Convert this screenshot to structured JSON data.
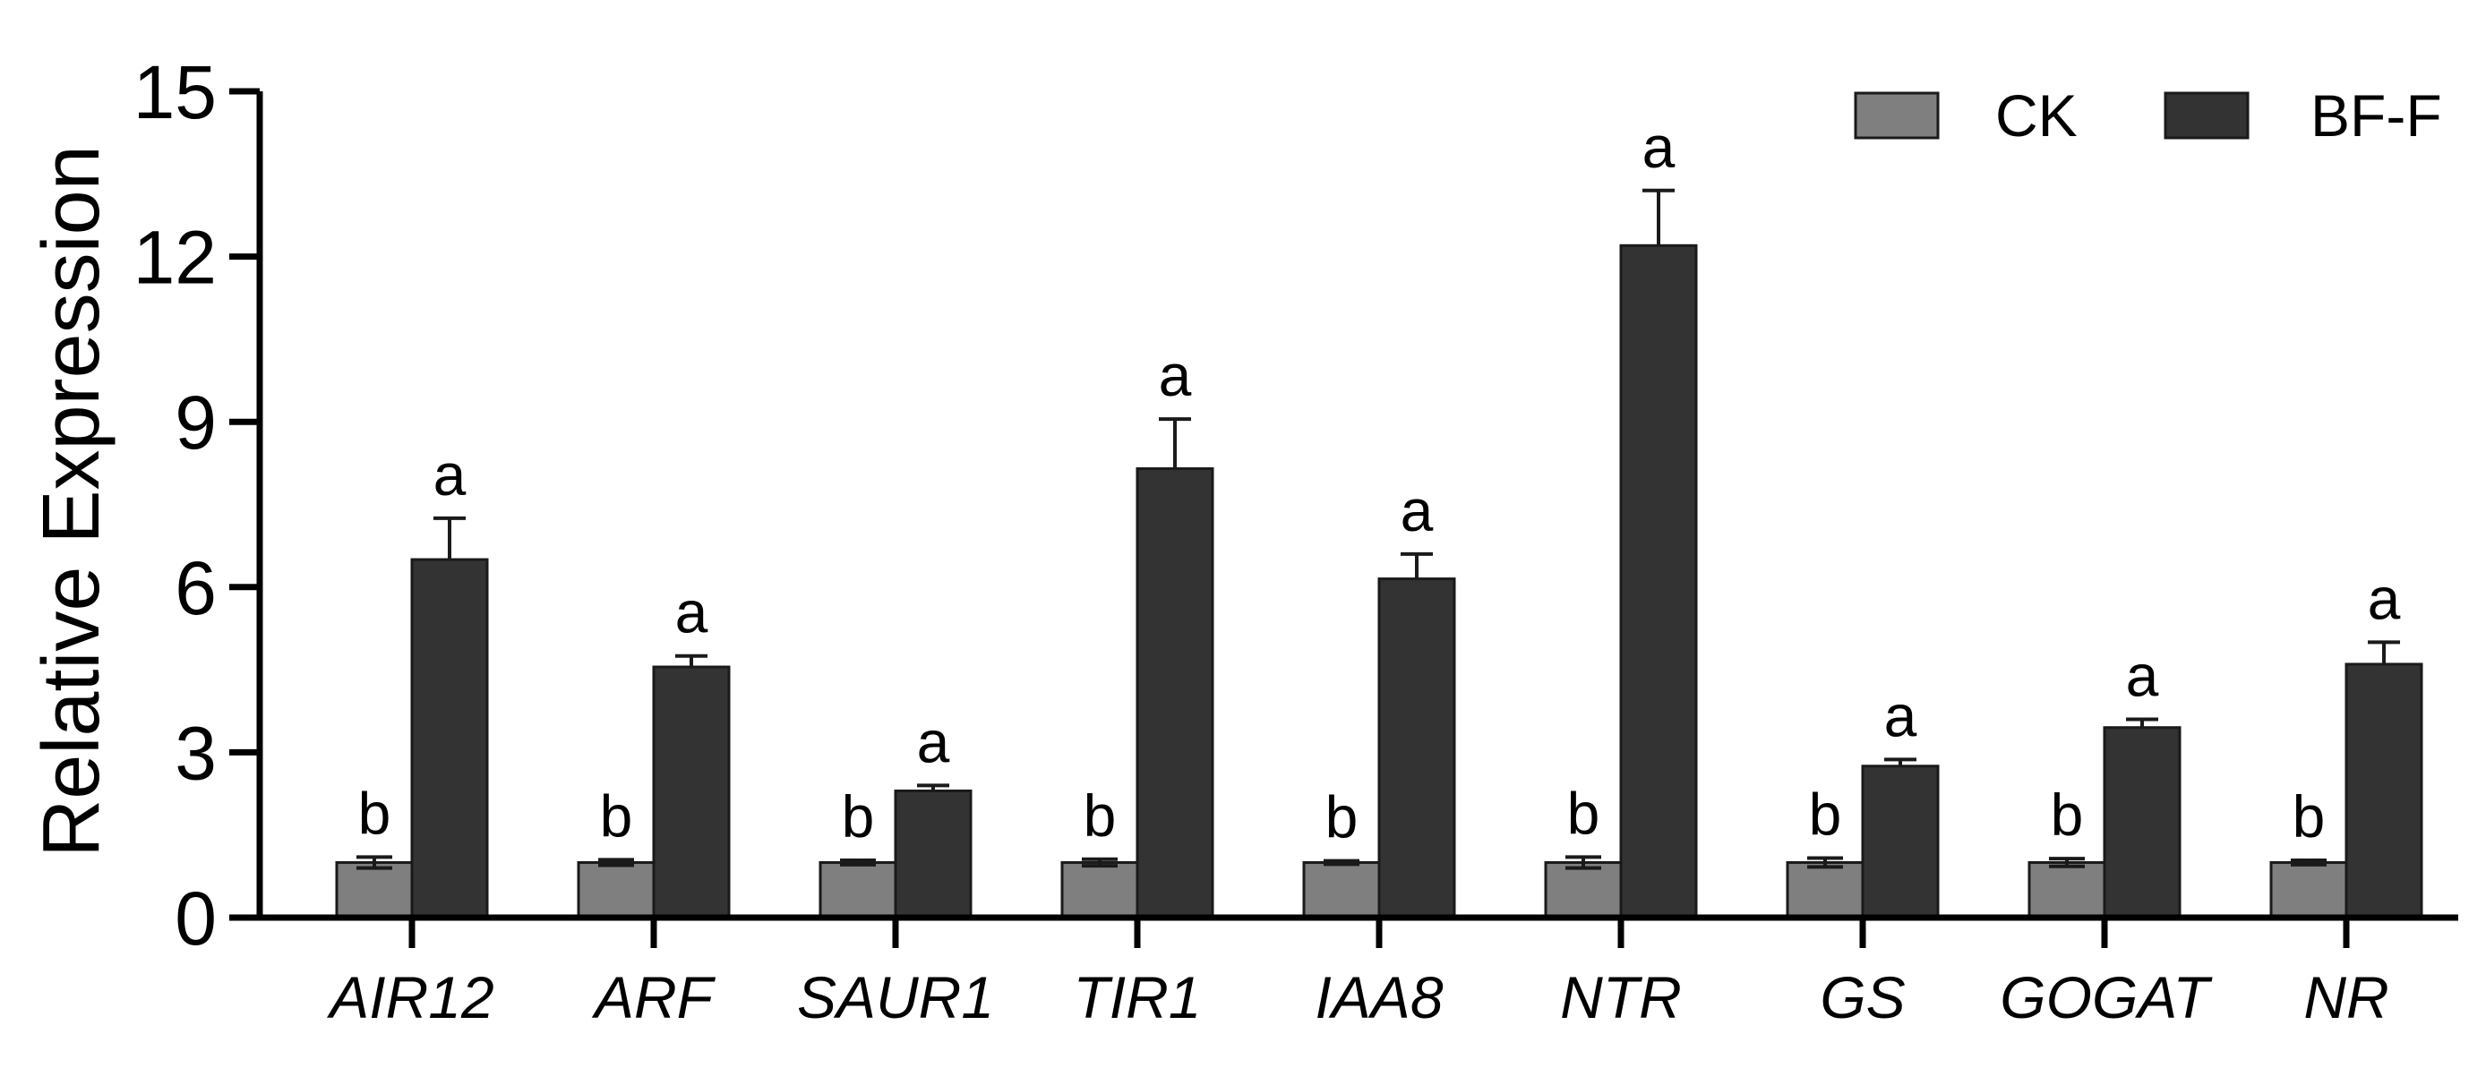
{
  "chart_data": {
    "type": "bar",
    "ylabel": "Relative Expression",
    "xlabel": "",
    "ylim": [
      0,
      15
    ],
    "yticks": [
      0,
      3,
      6,
      9,
      12,
      15
    ],
    "categories": [
      "AIR12",
      "ARF",
      "SAUR1",
      "TIR1",
      "IAA8",
      "NTR",
      "GS",
      "GOGAT",
      "NR"
    ],
    "legend_position": "top-right",
    "grid": false,
    "series": [
      {
        "name": "CK",
        "color": "#7f7f7f",
        "values": [
          1.0,
          1.0,
          1.0,
          1.0,
          1.0,
          1.0,
          1.0,
          1.0,
          1.0
        ],
        "errors": [
          0.1,
          0.05,
          0.04,
          0.06,
          0.03,
          0.1,
          0.08,
          0.07,
          0.04
        ],
        "significance": [
          "b",
          "b",
          "b",
          "b",
          "b",
          "b",
          "b",
          "b",
          "b"
        ]
      },
      {
        "name": "BF-F",
        "color": "#333333",
        "values": [
          6.5,
          4.55,
          2.3,
          8.15,
          6.15,
          12.2,
          2.75,
          3.45,
          4.6
        ],
        "errors": [
          0.75,
          0.2,
          0.1,
          0.9,
          0.45,
          1.0,
          0.12,
          0.15,
          0.4
        ],
        "significance": [
          "a",
          "a",
          "a",
          "a",
          "a",
          "a",
          "a",
          "a",
          "a"
        ]
      }
    ]
  }
}
